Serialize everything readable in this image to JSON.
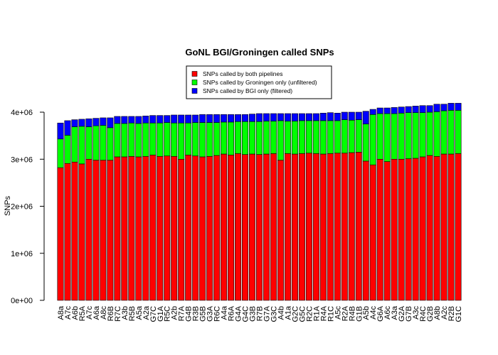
{
  "chart_data": {
    "type": "bar",
    "stacked": true,
    "title": "GoNL BGI/Groningen called SNPs",
    "xlabel": "",
    "ylabel": "SNPs",
    "ylim": [
      0,
      4000000
    ],
    "yticks": [
      0,
      1000000,
      2000000,
      3000000,
      4000000
    ],
    "ytick_labels": [
      "0e+00",
      "1e+06",
      "2e+06",
      "3e+06",
      "4e+06"
    ],
    "grid": false,
    "legend_position": "top-center",
    "categories": [
      "A8a",
      "A7c",
      "A6b",
      "R5A",
      "A7c",
      "A6a",
      "A8c",
      "R6B",
      "R7C",
      "A3b",
      "R5B",
      "A5a",
      "A2a",
      "G7C",
      "G1A",
      "R5C",
      "A2b",
      "R7A",
      "G4B",
      "R3B",
      "G5B",
      "G3A",
      "R6C",
      "A4a",
      "R6A",
      "G4A",
      "G4C",
      "G3B",
      "R7B",
      "G7A",
      "G3C",
      "A4b",
      "A1a",
      "G2C",
      "G5C",
      "R2C",
      "R1A",
      "R4A",
      "R1C",
      "A5c",
      "R2A",
      "R4B",
      "G1B",
      "A5b",
      "A4c",
      "G6A",
      "A6c",
      "A3a",
      "G2A",
      "G7B",
      "A3c",
      "R4C",
      "G2B",
      "A8b",
      "A2c",
      "R2B",
      "G1C"
    ],
    "series": [
      {
        "name": "SNPs called by both pipelines",
        "color": "#ff0000",
        "values": [
          2820000,
          2910000,
          2940000,
          2900000,
          3000000,
          2980000,
          2980000,
          2980000,
          3050000,
          3050000,
          3060000,
          3050000,
          3060000,
          3090000,
          3060000,
          3070000,
          3060000,
          3000000,
          3090000,
          3070000,
          3050000,
          3060000,
          3080000,
          3110000,
          3090000,
          3120000,
          3100000,
          3110000,
          3100000,
          3110000,
          3120000,
          2980000,
          3120000,
          3110000,
          3120000,
          3130000,
          3120000,
          3110000,
          3120000,
          3130000,
          3130000,
          3140000,
          3150000,
          2960000,
          2880000,
          3000000,
          2950000,
          3000000,
          3000000,
          3010000,
          3020000,
          3050000,
          3080000,
          3060000,
          3110000,
          3110000,
          3120000
        ]
      },
      {
        "name": "SNPs called by Groningen only (unfiltered)",
        "color": "#00ff00",
        "values": [
          610000,
          600000,
          750000,
          800000,
          690000,
          730000,
          740000,
          690000,
          710000,
          710000,
          710000,
          710000,
          710000,
          680000,
          710000,
          710000,
          710000,
          770000,
          680000,
          710000,
          730000,
          720000,
          700000,
          680000,
          700000,
          680000,
          700000,
          690000,
          700000,
          700000,
          690000,
          840000,
          690000,
          700000,
          700000,
          690000,
          700000,
          710000,
          700000,
          690000,
          710000,
          690000,
          690000,
          790000,
          1070000,
          970000,
          1020000,
          970000,
          980000,
          980000,
          970000,
          940000,
          920000,
          950000,
          920000,
          930000,
          920000
        ]
      },
      {
        "name": "SNPs called by BGI only (filtered)",
        "color": "#0000ff",
        "values": [
          340000,
          310000,
          150000,
          150000,
          170000,
          160000,
          160000,
          210000,
          150000,
          150000,
          140000,
          150000,
          150000,
          160000,
          160000,
          150000,
          170000,
          170000,
          170000,
          160000,
          170000,
          170000,
          170000,
          160000,
          160000,
          150000,
          150000,
          160000,
          170000,
          160000,
          160000,
          150000,
          160000,
          160000,
          150000,
          150000,
          150000,
          160000,
          170000,
          160000,
          160000,
          170000,
          160000,
          270000,
          110000,
          120000,
          120000,
          130000,
          130000,
          130000,
          140000,
          150000,
          140000,
          160000,
          140000,
          150000,
          150000
        ]
      }
    ]
  }
}
